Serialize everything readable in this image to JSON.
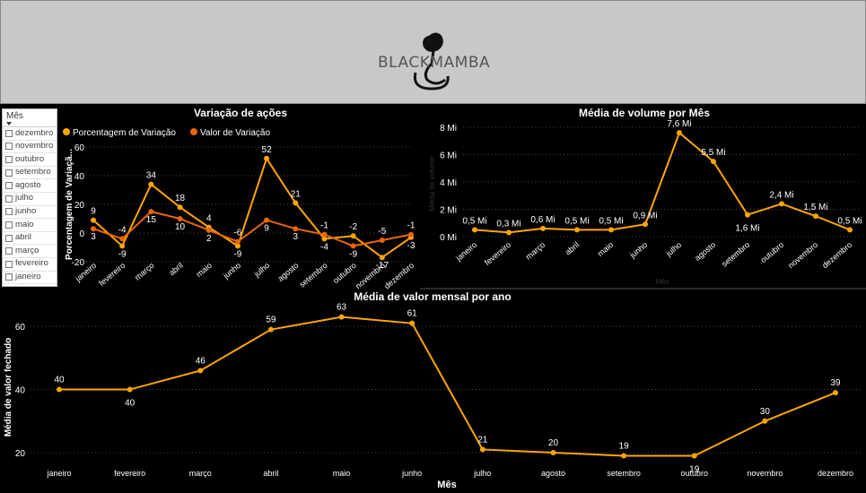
{
  "header": {
    "logo_text": "BLACKMAMBA",
    "bg": "#c8c8c8"
  },
  "slicer": {
    "title": "Mês",
    "items": [
      "dezembro",
      "novembro",
      "outubro",
      "setembro",
      "agosto",
      "julho",
      "junho",
      "maio",
      "abril",
      "março",
      "fevereiro",
      "janeiro"
    ]
  },
  "colors": {
    "line_yellow": "#FFA500",
    "line_orange": "#E8650A",
    "background": "#000000"
  },
  "chart_data": [
    {
      "type": "line",
      "title": "Variação de ações",
      "ylabel": "Porcentagem de Variaçã...",
      "categories": [
        "janeiro",
        "fevereiro",
        "março",
        "abril",
        "maio",
        "junho",
        "julho",
        "agosto",
        "setembro",
        "outubro",
        "novembro",
        "dezembro"
      ],
      "yticks": [
        -20,
        0,
        20,
        40,
        60
      ],
      "ylim": [
        -20,
        60
      ],
      "legend": "top-left",
      "series": [
        {
          "name": "Porcentagem de Variação",
          "color": "#FFA500",
          "values": [
            9,
            -9,
            34,
            18,
            4,
            -9,
            52,
            21,
            -4,
            -2,
            -17,
            -3
          ]
        },
        {
          "name": "Valor de Variação",
          "color": "#E8650A",
          "values": [
            3,
            -4,
            15,
            10,
            2,
            -6,
            9,
            3,
            -1,
            -9,
            -5,
            -1
          ]
        }
      ]
    },
    {
      "type": "line",
      "title": "Média de volume por Mês",
      "xlabel": "Mês",
      "ylabel": "Média de volume",
      "categories": [
        "janeiro",
        "fevereiro",
        "março",
        "abril",
        "maio",
        "junho",
        "julho",
        "agosto",
        "setembro",
        "outubro",
        "novembro",
        "dezembro"
      ],
      "yticks": [
        "0 Mi",
        "2 Mi",
        "4 Mi",
        "6 Mi",
        "8 Mi"
      ],
      "ylim": [
        0,
        8
      ],
      "series": [
        {
          "color": "#FFA500",
          "values": [
            0.5,
            0.3,
            0.6,
            0.5,
            0.5,
            0.9,
            7.6,
            5.5,
            1.6,
            2.4,
            1.5,
            0.5
          ],
          "labels": [
            "0,5 Mi",
            "0,3 Mi",
            "0,6 Mi",
            "0,5 Mi",
            "0,5 Mi",
            "0,9 Mi",
            "7,6 Mi",
            "5,5 Mi",
            "1,6 Mi",
            "2,4 Mi",
            "1,5 Mi",
            "0,5 Mi"
          ]
        }
      ]
    },
    {
      "type": "line",
      "title": "Média de valor mensal por ano",
      "xlabel": "Mês",
      "ylabel": "Média de valor fechado",
      "categories": [
        "janeiro",
        "fevereiro",
        "março",
        "abril",
        "maio",
        "junho",
        "julho",
        "agosto",
        "setembro",
        "outubro",
        "novembro",
        "dezembro"
      ],
      "yticks": [
        20,
        40,
        60
      ],
      "ylim": [
        18,
        68
      ],
      "series": [
        {
          "color": "#FFA500",
          "values": [
            40,
            40,
            46,
            59,
            63,
            61,
            21,
            20,
            19,
            19,
            30,
            39
          ]
        }
      ]
    }
  ]
}
